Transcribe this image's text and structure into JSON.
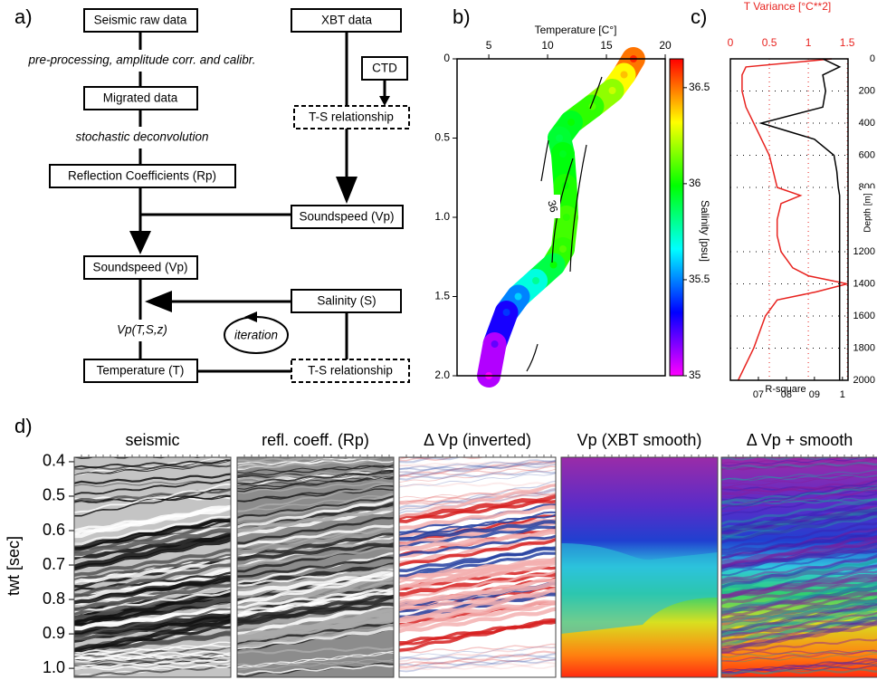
{
  "panel_labels": [
    "a)",
    "b)",
    "c)",
    "d)"
  ],
  "diagram": {
    "nodes": [
      {
        "label": "Seismic raw data"
      },
      {
        "label": "XBT data"
      },
      {
        "label": "CTD"
      },
      {
        "label": "Migrated data"
      },
      {
        "label": "T-S relationship"
      },
      {
        "label": "Reflection Coefficients (Rp)"
      },
      {
        "label": "Soundspeed (Vp)"
      },
      {
        "label": "Soundspeed (Vp)"
      },
      {
        "label": "Salinity (S)"
      },
      {
        "label": "Temperature (T)"
      },
      {
        "label": "T-S relationship"
      }
    ],
    "edge_labels": [
      "pre-processing, amplitude corr. and calibr.",
      "stochastic deconvolution",
      "Vp(T,S,z)",
      "iteration"
    ]
  },
  "chart_data": [
    {
      "type": "scatter",
      "title": "Temperature [C°]",
      "x": [
        17.3,
        16.5,
        15.5,
        13.8,
        12.0,
        11.0,
        11.3,
        11.5,
        11.6,
        11.3,
        10.5,
        9.0,
        7.5,
        6.5,
        5.5,
        5.0
      ],
      "values": [
        0,
        0.1,
        0.2,
        0.3,
        0.4,
        0.5,
        0.6,
        0.8,
        1.0,
        1.2,
        1.3,
        1.4,
        1.5,
        1.6,
        1.8,
        2.0
      ],
      "color_values": [
        36.6,
        36.4,
        36.25,
        36.1,
        36.0,
        35.9,
        35.95,
        36.0,
        36.05,
        36.1,
        36.0,
        35.8,
        35.6,
        35.4,
        35.2,
        35.0
      ],
      "colorbar_label": "Salinity [psu]",
      "colorscale": [
        "#ff00ff",
        "#0000ff",
        "#00ffff",
        "#00ff00",
        "#ffff00",
        "#ff0000"
      ],
      "clim": [
        35,
        36.65
      ],
      "cticks": [
        35,
        35.5,
        36,
        36.5
      ],
      "xlim": [
        2.3,
        20
      ],
      "xticks": [
        5,
        10,
        15,
        20
      ],
      "ylim": [
        0,
        2
      ],
      "yticks": [
        0,
        0.5,
        {
          "value": 1,
          "label": "1.0"
        },
        1.5,
        {
          "value": 2,
          "label": "2.0"
        }
      ],
      "y_inverted": true,
      "contour_label": 36
    },
    {
      "type": "line",
      "y": [
        0,
        50,
        100,
        200,
        300,
        400,
        500,
        600,
        700,
        800,
        850,
        900,
        1000,
        1100,
        1200,
        1300,
        1350,
        1400,
        1450,
        1500,
        1600,
        1800,
        2000
      ],
      "series": [
        {
          "name": "T Variance [°C**2]",
          "color": "#e8231f",
          "axis": "x",
          "values": [
            1.3,
            0.2,
            0.15,
            0.15,
            0.2,
            0.3,
            0.4,
            0.5,
            0.55,
            0.6,
            0.9,
            0.65,
            0.6,
            0.6,
            0.65,
            0.8,
            1.0,
            1.5,
            1.1,
            0.6,
            0.45,
            0.3,
            0.1
          ]
        },
        {
          "name": "R-square",
          "color": "#000000",
          "axis": "x2",
          "values": [
            0.93,
            0.99,
            0.93,
            0.94,
            0.93,
            0.71,
            0.9,
            0.97,
            0.98,
            0.985,
            0.99,
            0.99,
            0.99,
            0.99,
            0.99,
            0.99,
            0.99,
            0.99,
            0.99,
            0.99,
            0.99,
            0.99,
            0.99
          ]
        }
      ],
      "xlim": [
        0,
        1.51
      ],
      "xticks": [
        0,
        0.5,
        1,
        1.5
      ],
      "x2lim": [
        0.6,
        1.02
      ],
      "x2ticks": [
        {
          "value": 0.7,
          "label": "07"
        },
        {
          "value": 0.8,
          "label": "08"
        },
        {
          "value": 0.9,
          "label": "09"
        },
        1
      ],
      "ylim": [
        0,
        2000
      ],
      "yticks": [
        0,
        200,
        400,
        600,
        800,
        1200,
        1400,
        1600,
        1800,
        2000
      ],
      "ylabel": "Depth [m]",
      "y_inverted": true,
      "grid": true
    }
  ],
  "sections": {
    "titles": [
      "seismic",
      "refl. coeff. (Rp)",
      "Δ Vp (inverted)",
      "Vp (XBT smooth)",
      "Δ Vp + smooth"
    ],
    "ylabel": "twt [sec]",
    "ylim": [
      0.387,
      1.026
    ],
    "yticks": [
      0.4,
      0.5,
      0.6,
      0.7,
      0.8,
      0.9,
      {
        "value": 1,
        "label": "1.0"
      }
    ]
  }
}
